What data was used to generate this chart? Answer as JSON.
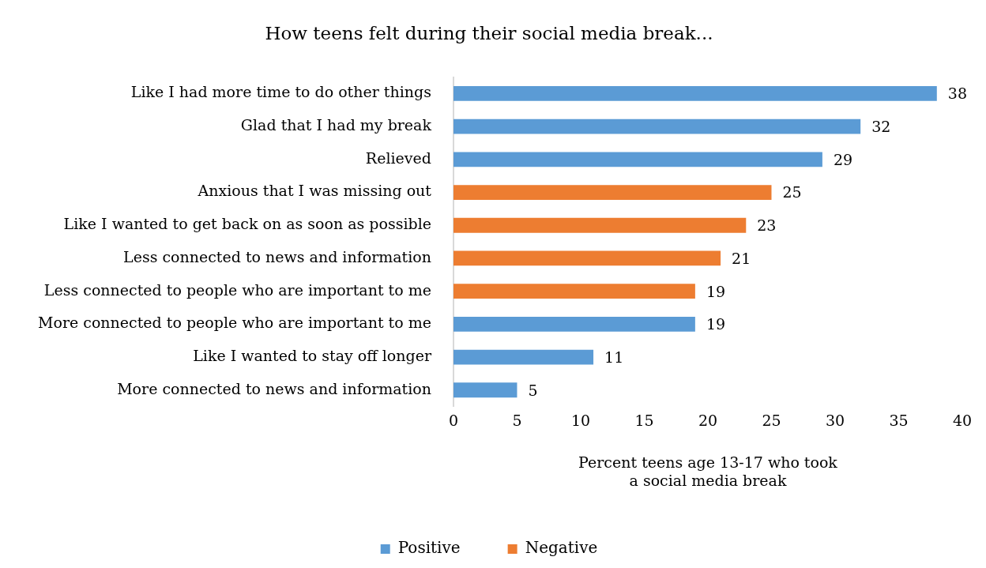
{
  "chart_data": {
    "type": "bar",
    "orientation": "horizontal",
    "stacked": true,
    "title": "How teens felt during their social media break...",
    "xlabel": "Percent teens age 13-17 who took\na social media break",
    "categories": [
      "Like I had more time to do other things",
      "Glad that I had my break",
      "Relieved",
      "Anxious that I was missing out",
      "Like I wanted to get back on as soon as possible",
      "Less connected to news and information",
      "Less connected to people who are important to me",
      "More connected to people who are important to me",
      "Like I wanted to stay off longer",
      "More connected to news and information"
    ],
    "series": [
      {
        "name": "Positive",
        "color": "#5b9bd5",
        "values": [
          38,
          32,
          29,
          null,
          null,
          null,
          null,
          19,
          11,
          5
        ]
      },
      {
        "name": "Negative",
        "color": "#ed7d31",
        "values": [
          null,
          null,
          null,
          25,
          23,
          21,
          19,
          null,
          null,
          null
        ]
      }
    ],
    "xlim": [
      0,
      40
    ],
    "xticks": [
      0,
      5,
      10,
      15,
      20,
      25,
      30,
      35,
      40
    ],
    "grid": false,
    "legend": "bottom",
    "data_labels": true
  }
}
